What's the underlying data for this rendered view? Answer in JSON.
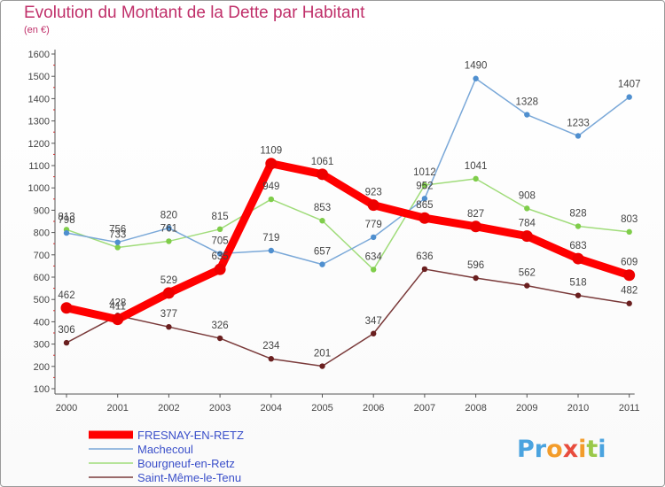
{
  "title": "Evolution du Montant de la Dette par Habitant",
  "unit": "(en €)",
  "brand": "Proxiti",
  "chart_data": {
    "type": "line",
    "title": "Evolution du Montant de la Dette par Habitant",
    "subtitle": "(en €)",
    "categories": [
      "2000",
      "2001",
      "2002",
      "2003",
      "2004",
      "2005",
      "2006",
      "2007",
      "2008",
      "2009",
      "2010",
      "2011"
    ],
    "ylim": [
      100,
      1600
    ],
    "yticks": [
      100,
      200,
      300,
      400,
      500,
      600,
      700,
      800,
      900,
      1000,
      1100,
      1200,
      1300,
      1400,
      1500,
      1600
    ],
    "grid": false,
    "legend_position": "bottom-left",
    "series": [
      {
        "name": "FRESNAY-EN-RETZ",
        "color": "#ff0000",
        "marker": "#ee0000",
        "width": 9,
        "r": 6.5,
        "values": [
          462,
          411,
          529,
          635,
          1109,
          1061,
          923,
          865,
          827,
          784,
          683,
          609
        ]
      },
      {
        "name": "Machecoul",
        "color": "#7aa8d8",
        "marker": "#4f8fcf",
        "width": 1.5,
        "r": 3.2,
        "values": [
          798,
          756,
          820,
          705,
          719,
          657,
          779,
          952,
          1490,
          1328,
          1233,
          1407
        ]
      },
      {
        "name": "Bourgneuf-en-Retz",
        "color": "#a0dc7a",
        "marker": "#7fcd4a",
        "width": 1.5,
        "r": 3.2,
        "values": [
          813,
          733,
          761,
          815,
          949,
          853,
          634,
          1012,
          1041,
          908,
          828,
          803
        ]
      },
      {
        "name": "Saint-Même-le-Tenu",
        "color": "#7a3a3a",
        "marker": "#6a1f1f",
        "width": 1.5,
        "r": 3.2,
        "values": [
          306,
          428,
          377,
          326,
          234,
          201,
          347,
          636,
          596,
          562,
          518,
          482
        ]
      }
    ]
  }
}
